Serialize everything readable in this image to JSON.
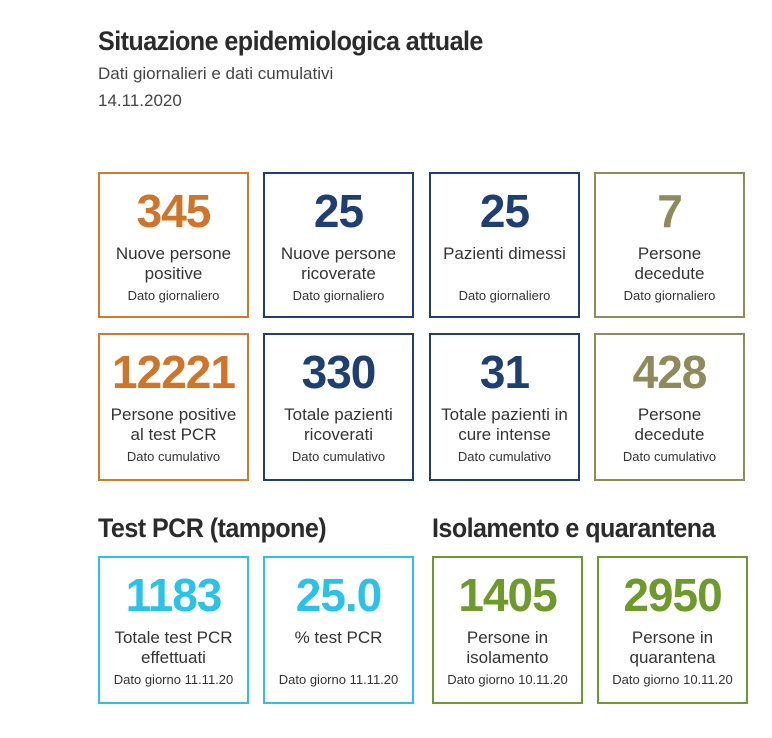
{
  "header": {
    "title": "Situazione epidemiologica attuale",
    "subtitle": "Dati giornalieri e dati cumulativi",
    "date": "14.11.2020"
  },
  "colors": {
    "orange": "#cf7428",
    "navy": "#1f3f73",
    "olive": "#8e8a5c",
    "cyan": "#29c3e9",
    "green": "#6d9a2a"
  },
  "daily": [
    {
      "value": "345",
      "label": "Nuove persone positive",
      "note": "Dato giornaliero"
    },
    {
      "value": "25",
      "label": "Nuove persone ricoverate",
      "note": "Dato giornaliero"
    },
    {
      "value": "25",
      "label": "Pazienti dimessi",
      "note": "Dato giornaliero"
    },
    {
      "value": "7",
      "label": "Persone decedute",
      "note": "Dato giornaliero"
    }
  ],
  "cumulative": [
    {
      "value": "12221",
      "label": "Persone positive al test PCR",
      "note": "Dato cumulativo"
    },
    {
      "value": "330",
      "label": "Totale pazienti ricoverati",
      "note": "Dato cumulativo"
    },
    {
      "value": "31",
      "label": "Totale pazienti in cure intense",
      "note": "Dato cumulativo"
    },
    {
      "value": "428",
      "label": "Persone decedute",
      "note": "Dato cumulativo"
    }
  ],
  "pcr": {
    "title": "Test PCR (tampone)",
    "cards": [
      {
        "value": "1183",
        "label": "Totale test PCR effettuati",
        "note": "Dato giorno 11.11.20"
      },
      {
        "value": "25.0",
        "label": "% test PCR",
        "note": "Dato giorno 11.11.20"
      }
    ]
  },
  "isolation": {
    "title": "Isolamento e quarantena",
    "cards": [
      {
        "value": "1405",
        "label": "Persone in isolamento",
        "note": "Dato giorno 10.11.20"
      },
      {
        "value": "2950",
        "label": "Persone in quarantena",
        "note": "Dato giorno 10.11.20"
      }
    ]
  }
}
